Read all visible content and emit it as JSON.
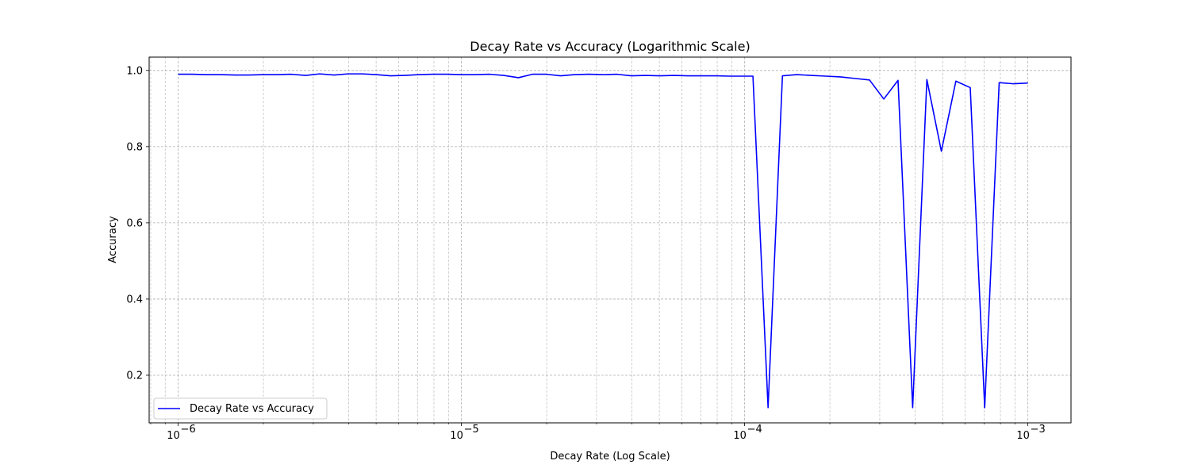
{
  "chart_data": {
    "type": "line",
    "title": "Decay Rate vs Accuracy (Logarithmic Scale)",
    "xlabel": "Decay Rate (Log Scale)",
    "ylabel": "Accuracy",
    "xscale": "log",
    "xlim": [
      7.9e-07,
      0.00142
    ],
    "ylim": [
      0.075,
      1.035
    ],
    "grid": true,
    "legend_position": "lower-left",
    "x_ticks": [
      {
        "value": 1e-06,
        "base": "10",
        "exp": "−6"
      },
      {
        "value": 1e-05,
        "base": "10",
        "exp": "−5"
      },
      {
        "value": 0.0001,
        "base": "10",
        "exp": "−4"
      },
      {
        "value": 0.001,
        "base": "10",
        "exp": "−3"
      }
    ],
    "y_ticks": [
      {
        "value": 0.2,
        "label": "0.2"
      },
      {
        "value": 0.4,
        "label": "0.4"
      },
      {
        "value": 0.6,
        "label": "0.6"
      },
      {
        "value": 0.8,
        "label": "0.8"
      },
      {
        "value": 1.0,
        "label": "1.0"
      }
    ],
    "series": [
      {
        "name": "Decay Rate vs Accuracy",
        "color": "#0000ff",
        "x": [
          1e-06,
          1.12e-06,
          1.26e-06,
          1.41e-06,
          1.59e-06,
          1.78e-06,
          2e-06,
          2.24e-06,
          2.51e-06,
          2.82e-06,
          3.16e-06,
          3.55e-06,
          3.98e-06,
          4.47e-06,
          5.01e-06,
          5.62e-06,
          6.31e-06,
          7.08e-06,
          7.94e-06,
          8.91e-06,
          1e-05,
          1.12e-05,
          1.26e-05,
          1.41e-05,
          1.59e-05,
          1.78e-05,
          2e-05,
          2.24e-05,
          2.51e-05,
          2.82e-05,
          3.16e-05,
          3.55e-05,
          3.98e-05,
          4.47e-05,
          5.01e-05,
          5.62e-05,
          6.31e-05,
          7.08e-05,
          7.94e-05,
          8.91e-05,
          0.0001,
          0.000107,
          0.000121,
          0.000136,
          0.000153,
          0.000172,
          0.000194,
          0.000218,
          0.000245,
          0.000276,
          0.00031,
          0.000348,
          0.000392,
          0.00044,
          0.000495,
          0.000557,
          0.000626,
          0.000704,
          0.000792,
          0.00089,
          0.001
        ],
        "y": [
          0.99,
          0.99,
          0.989,
          0.989,
          0.988,
          0.988,
          0.989,
          0.989,
          0.99,
          0.987,
          0.991,
          0.988,
          0.991,
          0.991,
          0.989,
          0.986,
          0.987,
          0.989,
          0.99,
          0.99,
          0.989,
          0.989,
          0.99,
          0.987,
          0.981,
          0.99,
          0.99,
          0.986,
          0.989,
          0.99,
          0.989,
          0.99,
          0.986,
          0.987,
          0.986,
          0.987,
          0.986,
          0.986,
          0.986,
          0.985,
          0.985,
          0.985,
          0.115,
          0.986,
          0.989,
          0.987,
          0.985,
          0.983,
          0.979,
          0.975,
          0.925,
          0.974,
          0.115,
          0.976,
          0.788,
          0.972,
          0.955,
          0.115,
          0.968,
          0.965,
          0.967
        ]
      }
    ]
  }
}
